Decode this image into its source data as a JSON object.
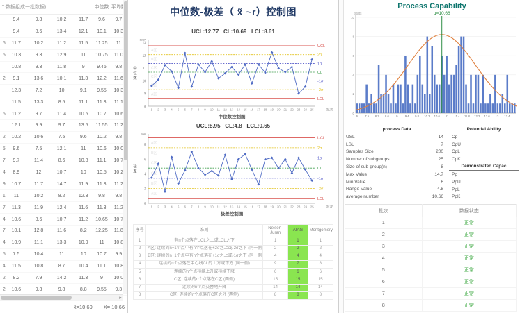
{
  "colors": {
    "red": "#d9534f",
    "yellow": "#e2c21d",
    "blue": "#5156c8",
    "green": "#3f9e4d",
    "series": "#4f6bc4",
    "bar": "#5b7cc9",
    "curve": "#e0813f",
    "mu_green": "#2f8f46",
    "title_navy": "#1f3864",
    "pc_title": "#0f766e",
    "ok_green": "#4caf50",
    "aiag_green": "#8ae550"
  },
  "left_table": {
    "header_group": "个数据组成一批数据)",
    "col_median": "中位数",
    "col_mean": "平均数",
    "rows": [
      [
        "",
        "9.4",
        "9.3",
        "10.2",
        "11.7",
        "9.6",
        "9.7"
      ],
      [
        "",
        "9.4",
        "8.6",
        "13.4",
        "12.1",
        "10.1",
        "10.3"
      ],
      [
        "5",
        "11.7",
        "10.2",
        "11.2",
        "11.5",
        "11.25",
        "11"
      ],
      [
        "5",
        "10.3",
        "9.3",
        "12.9",
        "11",
        "10.75",
        "11.0"
      ],
      [
        "",
        "10.8",
        "9.3",
        "11.8",
        "9",
        "9.45",
        "9.8"
      ],
      [
        "2",
        "9.1",
        "13.6",
        "10.1",
        "11.3",
        "12.2",
        "11.6"
      ],
      [
        "",
        "12.3",
        "7.2",
        "10",
        "9.1",
        "9.55",
        "10.3"
      ],
      [
        "",
        "11.5",
        "13.3",
        "8.5",
        "11.1",
        "11.3",
        "11.1"
      ],
      [
        "5",
        "11.2",
        "9.7",
        "11.4",
        "10.5",
        "10.7",
        "10.6"
      ],
      [
        "",
        "12.1",
        "9.9",
        "9.7",
        "13.5",
        "11.55",
        "11.2"
      ],
      [
        "2",
        "10.2",
        "10.6",
        "7.5",
        "9.6",
        "10.2",
        "9.8"
      ],
      [
        "5",
        "9.6",
        "7.5",
        "12.1",
        "11",
        "10.6",
        "10.0"
      ],
      [
        "7",
        "9.7",
        "11.4",
        "8.6",
        "10.8",
        "11.1",
        "10.7"
      ],
      [
        "4",
        "8.9",
        "12",
        "10.7",
        "10",
        "10.5",
        "10.2"
      ],
      [
        "9",
        "10.7",
        "11.7",
        "14.7",
        "11.9",
        "11.3",
        "11.2"
      ],
      [
        "1",
        "11",
        "10.2",
        "8.2",
        "12.3",
        "9.8",
        "9.8"
      ],
      [
        "7",
        "11.3",
        "11.9",
        "12.4",
        "11.6",
        "11.3",
        "11.2"
      ],
      [
        "4",
        "10.6",
        "8.6",
        "10.7",
        "11.2",
        "10.65",
        "10.7"
      ],
      [
        "7",
        "10.1",
        "12.8",
        "11.6",
        "8.2",
        "12.25",
        "11.8"
      ],
      [
        "4",
        "10.9",
        "11.1",
        "13.3",
        "10.9",
        "11",
        "10.8"
      ],
      [
        "5",
        "7.5",
        "10.4",
        "11",
        "10",
        "10.7",
        "9.9"
      ],
      [
        "4",
        "11.5",
        "10.8",
        "8.7",
        "10.4",
        "11.1",
        "10.8"
      ],
      [
        "2",
        "8.2",
        "7.9",
        "14.2",
        "11.3",
        "9",
        "10.0"
      ],
      [
        "2",
        "10.6",
        "9.3",
        "9.8",
        "8.8",
        "9.55",
        "9.3"
      ]
    ],
    "summary_median": "x̃=10.69",
    "summary_mean": "X̄= 10.66"
  },
  "middle": {
    "title": "中位数-极差（ x̃ ~r）控制图",
    "chart1_subtitle": "UCL:12.77   CL:10.69   LCL:8.61",
    "chart2_subtitle": "UCL:8.95   CL:4.8   LCL:0.65",
    "rules_table": {
      "headers": [
        "序号",
        "准则",
        "Nelson-Juran",
        "AIAG",
        "Montgomery"
      ],
      "rows": [
        [
          "1",
          "有n个点落在UCL之上或LCL之下",
          "1",
          "1",
          "1"
        ],
        [
          "2",
          "A区: 连续的n+1个点中有n个点落在+2σ之上或-2σ之下 (同一侧)",
          "2",
          "2",
          "2"
        ],
        [
          "3",
          "B区: 连续的n+1个点中有n个点落在+1σ之上或-1σ之下 (同一侧)",
          "4",
          "4",
          "4"
        ],
        [
          "4",
          "连续的n个点落在中心线CL的上方或下方 (同一侧)",
          "9",
          "7",
          "8"
        ],
        [
          "5",
          "连续的n个点持续上升或持续下降",
          "6",
          "6",
          "6"
        ],
        [
          "6",
          "C区: 连续的n个点落在C区 (两侧)",
          "15",
          "15",
          "15"
        ],
        [
          "7",
          "连续的n个点交替地升降",
          "14",
          "14",
          "14"
        ],
        [
          "8",
          "C区: 连续的n个点落在C区之外 (两侧)",
          "8",
          "8",
          "8"
        ]
      ]
    }
  },
  "chart_data": [
    {
      "type": "line",
      "name": "median-control-chart",
      "title": "中位数控制图",
      "ylabel": "中位数",
      "xend_label": "批次",
      "ylim": [
        8,
        13.27
      ],
      "yticks": [
        8,
        9,
        10,
        11,
        12,
        13
      ],
      "ytop": "13.27",
      "x": [
        1,
        2,
        3,
        4,
        5,
        6,
        7,
        8,
        9,
        10,
        11,
        12,
        13,
        14,
        15,
        16,
        17,
        18,
        19,
        20,
        21,
        22,
        23,
        24,
        25
      ],
      "values": [
        9.6,
        10.1,
        11.25,
        10.75,
        9.45,
        12.2,
        9.55,
        11.3,
        10.7,
        11.55,
        10.2,
        10.6,
        11.1,
        10.5,
        11.3,
        9.8,
        11.3,
        10.65,
        12.25,
        11,
        10.7,
        11.1,
        9,
        9.55,
        11.7
      ],
      "zones": [
        "A区",
        "B区",
        "C区",
        "C区",
        "B区",
        "A区"
      ],
      "lines": [
        {
          "v": 12.77,
          "label": "UCL",
          "c": "red",
          "solid": true
        },
        {
          "v": 12.08,
          "label": "2σ",
          "c": "yellow"
        },
        {
          "v": 11.38,
          "label": "1σ",
          "c": "blue"
        },
        {
          "v": 10.69,
          "label": "CL",
          "c": "green"
        },
        {
          "v": 10.0,
          "label": "-1σ",
          "c": "blue"
        },
        {
          "v": 9.31,
          "label": "-2σ",
          "c": "yellow"
        },
        {
          "v": 8.61,
          "label": "LCL",
          "c": "red",
          "solid": true
        }
      ]
    },
    {
      "type": "line",
      "name": "range-control-chart",
      "title": "极差控制图",
      "ylabel": "极差",
      "xend_label": "批次",
      "ylim": [
        0,
        9.45
      ],
      "yticks": [
        0,
        2,
        4,
        6,
        8
      ],
      "ytop": "9.45",
      "x": [
        1,
        2,
        3,
        4,
        5,
        6,
        7,
        8,
        9,
        10,
        11,
        12,
        13,
        14,
        15,
        16,
        17,
        18,
        19,
        20,
        21,
        22,
        23,
        24,
        25
      ],
      "values": [
        3.5,
        5.4,
        1.6,
        6.3,
        2.7,
        4.5,
        7,
        4.8,
        3.9,
        4.4,
        3.8,
        6.6,
        3.3,
        6,
        6.7,
        4.6,
        2.6,
        6,
        6.2,
        4.8,
        6,
        4.1,
        6.2,
        4.6,
        3.1
      ],
      "zones": [
        "A区",
        "B区",
        "C区",
        "C区",
        "B区",
        "A区"
      ],
      "lines": [
        {
          "v": 8.95,
          "label": "UCL",
          "c": "red",
          "solid": true
        },
        {
          "v": 7.57,
          "label": "2σ",
          "c": "yellow"
        },
        {
          "v": 6.18,
          "label": "1σ",
          "c": "blue"
        },
        {
          "v": 4.8,
          "label": "CL",
          "c": "green"
        },
        {
          "v": 3.42,
          "label": "-1σ",
          "c": "blue"
        },
        {
          "v": 2.03,
          "label": "-2σ",
          "c": "yellow"
        },
        {
          "v": 0.65,
          "label": "LCL",
          "c": "red",
          "solid": true
        }
      ]
    },
    {
      "type": "bar",
      "name": "process-capability-histogram",
      "title": "Process Capability",
      "mu": 10.66,
      "ylim": [
        0,
        10
      ],
      "yticks": [
        0,
        2,
        4,
        6,
        8,
        10
      ],
      "xticklabels": [
        "6",
        "7.5",
        "8.1",
        "8.6",
        "9",
        "9.4",
        "9.8",
        "10.2",
        "10.6",
        "11",
        "11.4",
        "11.8",
        "12.2",
        "12.6",
        "13",
        "13.4"
      ],
      "values": [
        1,
        1,
        1,
        1,
        3,
        1,
        2,
        1,
        1,
        5,
        2,
        2,
        4,
        2,
        1,
        3,
        1,
        3,
        3,
        1,
        6,
        3,
        1,
        3,
        1,
        4,
        6,
        3,
        2,
        8,
        2,
        7,
        4,
        3,
        3,
        6,
        4,
        6,
        3,
        4,
        4,
        5,
        7,
        8,
        8,
        3,
        1,
        4,
        1,
        4,
        4,
        1,
        4,
        1,
        1,
        2,
        1,
        4,
        1,
        1,
        2,
        1,
        4,
        1,
        1,
        1
      ],
      "curve_peak": 8.2,
      "curve_center_index": 35,
      "curve_sigma": 14,
      "mu_index": 35.5
    }
  ],
  "right": {
    "title": "Process Capability",
    "mu_label": "μ=10.66",
    "y_axis_label": "stats",
    "process_table": {
      "left_header": "process Data",
      "rows": [
        [
          "USL",
          "14"
        ],
        [
          "LSL",
          "7"
        ],
        [
          "Samples Size",
          "200"
        ],
        [
          "Number of subgroups",
          "25"
        ],
        [
          "Size of sub-group(n)",
          "8"
        ],
        [
          "Max Value",
          "14.7"
        ],
        [
          "Min Value",
          "6"
        ],
        [
          "Range Value",
          "4.8"
        ],
        [
          "average number",
          "10.66"
        ]
      ],
      "right_header1": "Potential Ability",
      "right_rows1": [
        "Cp",
        "CpU",
        "CpL",
        "CpK"
      ],
      "right_header2": "Demonstrated Capac",
      "right_rows2": [
        "Pp",
        "PpU",
        "PpL",
        "PpK"
      ]
    },
    "batch_table": {
      "headers": [
        "批次",
        "数据状态"
      ],
      "rows": [
        [
          "1",
          "正常"
        ],
        [
          "2",
          "正常"
        ],
        [
          "3",
          "正常"
        ],
        [
          "4",
          "正常"
        ],
        [
          "5",
          "正常"
        ],
        [
          "6",
          "正常"
        ],
        [
          "7",
          "正常"
        ],
        [
          "8",
          "正常"
        ]
      ]
    }
  }
}
